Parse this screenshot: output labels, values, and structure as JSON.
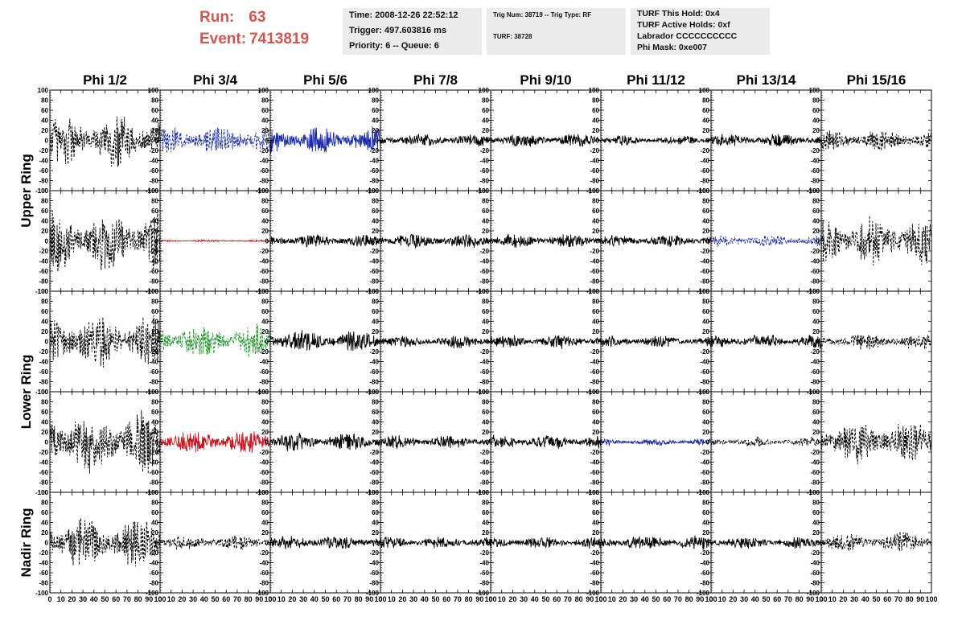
{
  "header": {
    "run_label": "Run:",
    "run_value": "63",
    "event_label": "Event:",
    "event_value": "7413819",
    "box1": [
      "Time: 2008-12-26 22:52:12",
      "Trigger: 497.603816 ms",
      "Priority: 6 -- Queue: 6"
    ],
    "box2": [
      "Trig Num: 38719 -- Trig Type: RF",
      "TURF: 38728"
    ],
    "box3": [
      "TURF This Hold: 0x4",
      "TURF Active Holds: 0xf",
      "Labrador CCCCCCCCCC",
      "Phi Mask: 0xe007"
    ]
  },
  "chart_data": {
    "type": "line",
    "columns": [
      "Phi 1/2",
      "Phi 3/4",
      "Phi 5/6",
      "Phi 7/8",
      "Phi 9/10",
      "Phi 11/12",
      "Phi 13/14",
      "Phi 15/16"
    ],
    "row_labels": [
      "Upper Ring",
      "Lower Ring",
      "Nadir Ring"
    ],
    "panel_rows": 5,
    "row_groups": [
      [
        0,
        1
      ],
      [
        2,
        3
      ],
      [
        4
      ]
    ],
    "y_ticks": [
      100,
      80,
      60,
      40,
      20,
      0,
      -20,
      -40,
      -60,
      -80,
      -100
    ],
    "x_ticks": [
      0,
      10,
      20,
      30,
      40,
      50,
      60,
      70,
      80,
      90,
      100
    ],
    "xlim": [
      0,
      100
    ],
    "ylim": [
      -100,
      100
    ],
    "colors": {
      "black": "#000000",
      "blue": "#1c2fa8",
      "red": "#c8141e",
      "green": "#1e9428"
    },
    "panels": [
      [
        {
          "color": "black",
          "style": "dashed",
          "amp": 55
        },
        {
          "color": "blue",
          "style": "dashed",
          "amp": 30
        },
        {
          "color": "blue",
          "style": "solid",
          "amp": 28
        },
        {
          "color": "black",
          "style": "solid",
          "amp": 13
        },
        {
          "color": "black",
          "style": "solid",
          "amp": 14
        },
        {
          "color": "black",
          "style": "solid",
          "amp": 10
        },
        {
          "color": "black",
          "style": "solid",
          "amp": 14
        },
        {
          "color": "black",
          "style": "dashed",
          "amp": 22
        }
      ],
      [
        {
          "color": "black",
          "style": "dashed",
          "amp": 65
        },
        {
          "color": "red",
          "style": "solid",
          "amp": 2
        },
        {
          "color": "black",
          "style": "solid",
          "amp": 14
        },
        {
          "color": "black",
          "style": "solid",
          "amp": 15
        },
        {
          "color": "black",
          "style": "solid",
          "amp": 15
        },
        {
          "color": "black",
          "style": "solid",
          "amp": 13
        },
        {
          "color": "blue",
          "style": "dashed",
          "amp": 13
        },
        {
          "color": "black",
          "style": "dashed",
          "amp": 50
        }
      ],
      [
        {
          "color": "black",
          "style": "dashed",
          "amp": 55
        },
        {
          "color": "green",
          "style": "dashed",
          "amp": 35
        },
        {
          "color": "black",
          "style": "solid",
          "amp": 22
        },
        {
          "color": "black",
          "style": "solid",
          "amp": 14
        },
        {
          "color": "black",
          "style": "solid",
          "amp": 14
        },
        {
          "color": "black",
          "style": "solid",
          "amp": 12
        },
        {
          "color": "black",
          "style": "solid",
          "amp": 15
        },
        {
          "color": "black",
          "style": "dashed",
          "amp": 16
        }
      ],
      [
        {
          "color": "black",
          "style": "dashed",
          "amp": 65
        },
        {
          "color": "red",
          "style": "solid",
          "amp": 25
        },
        {
          "color": "black",
          "style": "solid",
          "amp": 18
        },
        {
          "color": "black",
          "style": "solid",
          "amp": 14
        },
        {
          "color": "black",
          "style": "solid",
          "amp": 15
        },
        {
          "color": "blue",
          "style": "solid",
          "amp": 7
        },
        {
          "color": "black",
          "style": "dashed",
          "amp": 10
        },
        {
          "color": "black",
          "style": "dashed",
          "amp": 45
        }
      ],
      [
        {
          "color": "black",
          "style": "dashed",
          "amp": 55
        },
        {
          "color": "black",
          "style": "dashed",
          "amp": 16
        },
        {
          "color": "black",
          "style": "solid",
          "amp": 15
        },
        {
          "color": "black",
          "style": "solid",
          "amp": 12
        },
        {
          "color": "black",
          "style": "solid",
          "amp": 12
        },
        {
          "color": "black",
          "style": "solid",
          "amp": 15
        },
        {
          "color": "black",
          "style": "solid",
          "amp": 12
        },
        {
          "color": "black",
          "style": "dashed",
          "amp": 22
        }
      ]
    ]
  }
}
